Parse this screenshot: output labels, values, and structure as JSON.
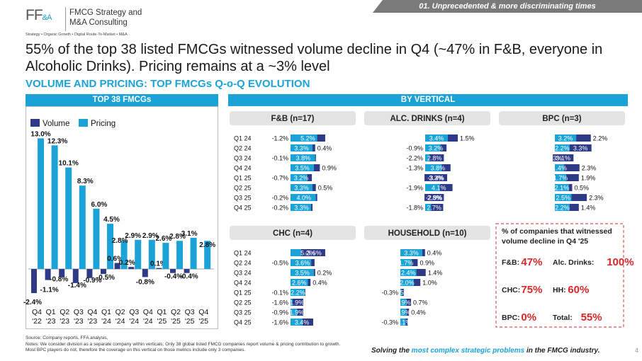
{
  "header": {
    "logo_mark": "FF",
    "logo_amp": "&A",
    "logo_line1": "FMCG Strategy and",
    "logo_line2": "M&A Consulting",
    "logo_tagline": "Strategy • Organic Growth • Digital Route-To-Market • M&A",
    "section_tab": "01. Unprecedented & more discriminating times"
  },
  "headline": "55% of the top 38 listed FMCGs witnessed volume decline in Q4 (~47% in F&B, everyone in Alcoholic Drinks). Pricing remains at a ~3% level",
  "subhead": "VOLUME AND PRICING: TOP FMCGs Q-o-Q EVOLUTION",
  "panel_titles": {
    "left": "TOP 38 FMCGs",
    "right": "BY VERTICAL"
  },
  "colors": {
    "volume": "#2e3a87",
    "pricing": "#1ba3d8",
    "accent": "#1ba3d8",
    "box_border": "#e05555",
    "stat": "#d62828"
  },
  "chart_data": [
    {
      "type": "bar",
      "title": "TOP 38 FMCGs",
      "categories": [
        [
          "Q4",
          "'22"
        ],
        [
          "Q1",
          "'23"
        ],
        [
          "Q2",
          "'23"
        ],
        [
          "Q3",
          "'23"
        ],
        [
          "Q4",
          "'23"
        ],
        [
          "Q1",
          "'24"
        ],
        [
          "Q2",
          "'24"
        ],
        [
          "Q3",
          "'24"
        ],
        [
          "Q4",
          "'24"
        ],
        [
          "Q1",
          "'25"
        ],
        [
          "Q2",
          "'25"
        ],
        [
          "Q3",
          "'25"
        ],
        [
          "Q4",
          "'25"
        ]
      ],
      "series": [
        {
          "name": "Volume",
          "values": [
            -2.4,
            -1.1,
            -0.8,
            -1.4,
            -0.9,
            -0.5,
            0.6,
            0.2,
            -0.8,
            0.1,
            -0.4,
            -0.4,
            null
          ]
        },
        {
          "name": "Pricing",
          "values": [
            13.0,
            12.3,
            10.1,
            8.3,
            6.0,
            4.5,
            2.8,
            2.9,
            2.9,
            2.6,
            2.8,
            3.1,
            2.8
          ]
        }
      ],
      "volume_labels": [
        "-2.4%",
        "-1.1%",
        "-0.8%",
        "-1.4%",
        "-0.9%",
        "-0.5%",
        "0.6%",
        "0.2%",
        "-0.8%",
        "0.1%",
        "-0.4%",
        "-0.4%",
        ""
      ],
      "pricing_labels": [
        "13.0%",
        "12.3%",
        "10.1%",
        "8.3%",
        "6.0%",
        "4.5%",
        "2.8%",
        "2.9%",
        "2.9%",
        "2.6%",
        "2.8%",
        "3.1%",
        "2.8%"
      ],
      "legend_position": "top-left"
    },
    {
      "type": "bar",
      "orientation": "horizontal",
      "title": "F&B (n=17)",
      "categories": [
        "Q1 24",
        "Q2 24",
        "Q3 24",
        "Q4 24",
        "Q1 25",
        "Q2 25",
        "Q3 25",
        "Q4 25"
      ],
      "series": [
        {
          "name": "Volume",
          "values": [
            -1.2,
            0.4,
            -0.1,
            0.9,
            -0.7,
            0.5,
            -0.2,
            -0.2
          ]
        },
        {
          "name": "Pricing",
          "values": [
            5.2,
            3.3,
            3.8,
            3.5,
            3.2,
            3.3,
            4.0,
            3.3
          ]
        }
      ],
      "volume_labels": [
        "-1.2%",
        "0.4%",
        "-0.1%",
        "0.9%",
        "-0.7%",
        "0.5%",
        "-0.2%",
        "-0.2%"
      ],
      "pricing_labels": [
        "5.2%",
        "3.3%",
        "3.8%",
        "3.5%",
        "3.2%",
        "3.3%",
        "4.0%",
        "3.3%"
      ]
    },
    {
      "type": "bar",
      "orientation": "horizontal",
      "title": "ALC. DRINKS (n=4)",
      "categories": [
        "",
        "",
        "",
        "",
        "",
        "",
        "",
        ""
      ],
      "series": [
        {
          "name": "Volume",
          "values": [
            1.5,
            -0.9,
            -2.2,
            -1.3,
            -3.4,
            -1.9,
            -2.9,
            -1.8
          ]
        },
        {
          "name": "Pricing",
          "values": [
            3.4,
            3.2,
            2.8,
            3.8,
            3.3,
            4.1,
            2.8,
            2.7
          ]
        }
      ],
      "volume_labels": [
        "1.5%",
        "-0.9%",
        "-2.2%",
        "-1.3%",
        "-3.4%",
        "-1.9%",
        "-2.9%",
        "-1.8%"
      ],
      "pricing_labels": [
        "3.4%",
        "3.2%",
        "2.8%",
        "3.8%",
        "3.3%",
        "4.1%",
        "2.8%",
        "2.7%"
      ]
    },
    {
      "type": "bar",
      "orientation": "horizontal",
      "title": "BPC (n=3)",
      "categories": [
        "",
        "",
        "",
        "",
        "",
        "",
        "",
        ""
      ],
      "series": [
        {
          "name": "Volume",
          "values": [
            2.2,
            3.3,
            3.1,
            2.3,
            1.9,
            0.5,
            2.3,
            1.4
          ]
        },
        {
          "name": "Pricing",
          "values": [
            3.2,
            2.2,
            -0.3,
            1.4,
            1.7,
            2.1,
            2.5,
            2.2
          ]
        }
      ],
      "volume_labels": [
        "2.2%",
        "3.3%",
        "3.1%",
        "2.3%",
        "1.9%",
        "0.5%",
        "2.3%",
        "1.4%"
      ],
      "pricing_labels": [
        "3.2%",
        "2.2%",
        "-0.3%",
        "1.4%",
        "1.7%",
        "2.1%",
        "2.5%",
        "2.2%"
      ]
    },
    {
      "type": "bar",
      "orientation": "horizontal",
      "title": "CHC (n=4)",
      "categories": [
        "Q1 24",
        "Q2 24",
        "Q3 24",
        "Q4 24",
        "Q1 25",
        "Q2 25",
        "Q3 25",
        "Q4 25"
      ],
      "series": [
        {
          "name": "Volume",
          "values": [
            -3.6,
            -0.5,
            0.2,
            0.4,
            -0.1,
            -1.6,
            -0.9,
            -1.6
          ]
        },
        {
          "name": "Pricing",
          "values": [
            5.2,
            3.6,
            3.5,
            2.6,
            2.2,
            1.9,
            1.9,
            3.4
          ]
        }
      ],
      "volume_labels": [
        "-3.6%",
        "-0.5%",
        "0.2%",
        "0.4%",
        "-0.1%",
        "-1.6%",
        "-0.9%",
        "-1.6%"
      ],
      "pricing_labels": [
        "5.2%",
        "3.6%",
        "3.5%",
        "2.6%",
        "2.2%",
        "1.9%",
        "1.9%",
        "3.4%"
      ]
    },
    {
      "type": "bar",
      "orientation": "horizontal",
      "title": "HOUSEHOLD (n=10)",
      "categories": [
        "",
        "",
        "",
        "",
        "",
        "",
        "",
        ""
      ],
      "series": [
        {
          "name": "Volume",
          "values": [
            0.4,
            0.9,
            1.4,
            1.0,
            -0.3,
            0.7,
            0.4,
            -0.3
          ]
        },
        {
          "name": "Pricing",
          "values": [
            3.3,
            1.7,
            2.4,
            2.0,
            0.5,
            0.9,
            0.9,
            1.1
          ]
        }
      ],
      "volume_labels": [
        "0.4%",
        "0.9%",
        "1.4%",
        "1.0%",
        "-0.3%",
        "0.7%",
        "0.4%",
        "-0.3%"
      ],
      "pricing_labels": [
        "3.3%",
        "1.7%",
        "2.4%",
        "2.0%",
        "0.5%",
        "0.9%",
        "0.9%",
        "1.1%"
      ]
    }
  ],
  "decline_box": {
    "title_line1": "% of companies that witnessed",
    "title_line2": "volume decline in Q4 '25",
    "items": [
      {
        "label": "F&B:",
        "value": "47%"
      },
      {
        "label": "Alc. Drinks:",
        "value": "100%"
      },
      {
        "label": "CHC:",
        "value": "75%"
      },
      {
        "label": "HH:",
        "value": "60%"
      },
      {
        "label": "BPC:",
        "value": "0%"
      },
      {
        "label": "Total:",
        "value": "55%"
      }
    ]
  },
  "footer": {
    "source": "Source: Company reports, FFA analysis,",
    "note1": "Notes: We consider division as a separate company within verticals; Only 38 global listed FMCG companies report volume & pricing contribution to growth.",
    "note2": "Most BPC players do not, therefore the coverage on this vertical on those metrics include only 3 companies.",
    "tagline_a": "Solving the ",
    "tagline_b": "most complex strategic problems",
    "tagline_c": " in the FMCG industry.",
    "page": "4"
  }
}
